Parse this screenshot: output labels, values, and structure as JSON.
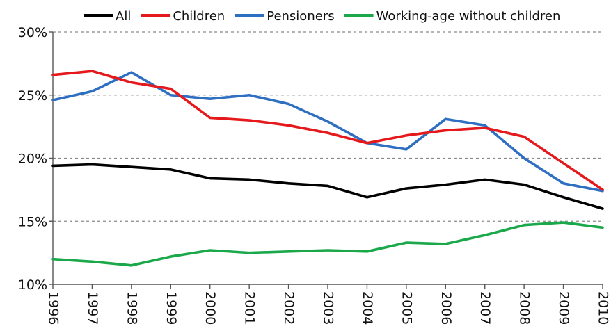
{
  "chart_data": {
    "type": "line",
    "title": "",
    "xlabel": "",
    "ylabel": "",
    "categories": [
      "1996",
      "1997",
      "1998",
      "1999",
      "2000",
      "2001",
      "2002",
      "2003",
      "2004",
      "2005",
      "2006",
      "2007",
      "2008",
      "2009",
      "2010"
    ],
    "ylim": [
      10,
      30
    ],
    "yticks": [
      10,
      15,
      20,
      25,
      30
    ],
    "ytick_labels": [
      "10%",
      "15%",
      "20%",
      "25%",
      "30%"
    ],
    "grid": true,
    "legend_position": "top",
    "series": [
      {
        "name": "All",
        "color": "#000000",
        "values": [
          19.4,
          19.5,
          19.3,
          19.1,
          18.4,
          18.3,
          18.0,
          17.8,
          16.9,
          17.6,
          17.9,
          18.3,
          17.9,
          16.9,
          16.0
        ]
      },
      {
        "name": "Children",
        "color": "#e5191c",
        "values": [
          26.6,
          26.9,
          26.0,
          25.5,
          23.2,
          23.0,
          22.6,
          22.0,
          21.2,
          21.8,
          22.2,
          22.4,
          21.7,
          19.6,
          17.5
        ]
      },
      {
        "name": "Pensioners",
        "color": "#2e6fc1",
        "values": [
          24.6,
          25.3,
          26.8,
          25.0,
          24.7,
          25.0,
          24.3,
          22.9,
          21.2,
          20.7,
          23.1,
          22.6,
          20.0,
          18.0,
          17.4
        ]
      },
      {
        "name": "Working-age without children",
        "color": "#1aa84a",
        "values": [
          12.0,
          11.8,
          11.5,
          12.2,
          12.7,
          12.5,
          12.6,
          12.7,
          12.6,
          13.3,
          13.2,
          13.9,
          14.7,
          14.9,
          14.5
        ]
      }
    ]
  }
}
